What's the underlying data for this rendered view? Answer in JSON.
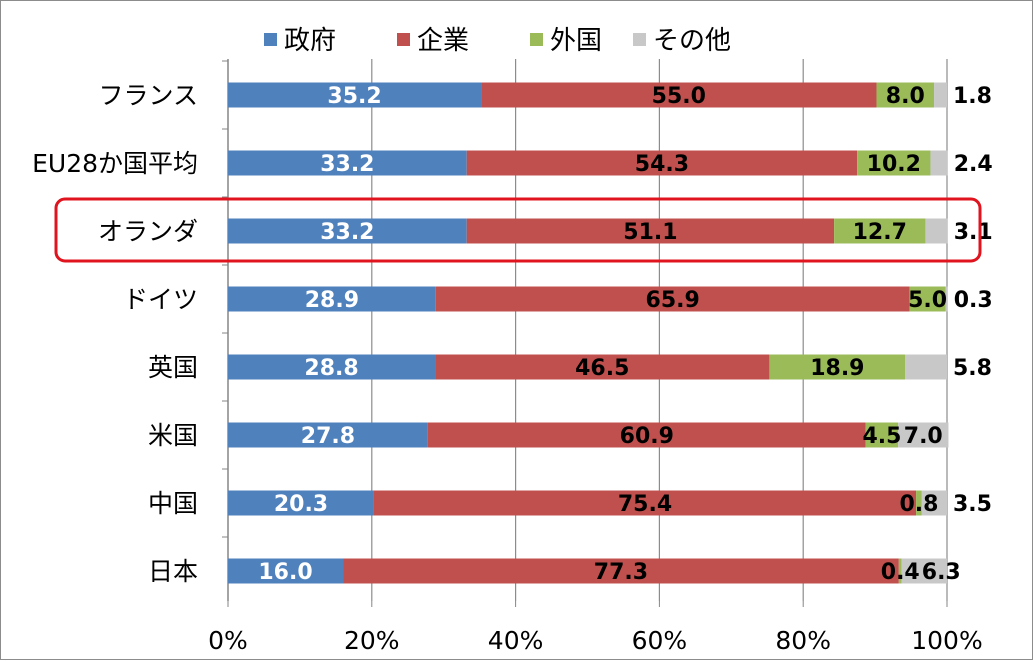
{
  "chart_data": {
    "type": "bar",
    "orientation": "horizontal",
    "stacked": true,
    "categories": [
      "フランス",
      "EU28か国平均",
      "オランダ",
      "ドイツ",
      "英国",
      "米国",
      "中国",
      "日本"
    ],
    "highlighted_category": "オランダ",
    "series": [
      {
        "name": "政府",
        "color": "#4f81bd",
        "label_color": "#ffffff",
        "values": [
          35.2,
          33.2,
          33.2,
          28.9,
          28.8,
          27.8,
          20.3,
          16.0
        ]
      },
      {
        "name": "企業",
        "color": "#c0504d",
        "label_color": "#000000",
        "values": [
          55.0,
          54.3,
          51.1,
          65.9,
          46.5,
          60.9,
          75.4,
          77.3
        ]
      },
      {
        "name": "外国",
        "color": "#9bbb59",
        "label_color": "#000000",
        "values": [
          8.0,
          10.2,
          12.7,
          5.0,
          18.9,
          4.5,
          0.8,
          0.4
        ]
      },
      {
        "name": "その他",
        "color": "#c8c8c8",
        "label_color": "#000000",
        "values": [
          1.8,
          2.4,
          3.1,
          0.3,
          5.8,
          7.0,
          3.5,
          6.3
        ]
      }
    ],
    "xlim": [
      0,
      100
    ],
    "x_ticks": [
      "0%",
      "20%",
      "40%",
      "60%",
      "80%",
      "100%"
    ],
    "grid": true,
    "legend_position": "top",
    "highlight_color": "#e0141e"
  }
}
